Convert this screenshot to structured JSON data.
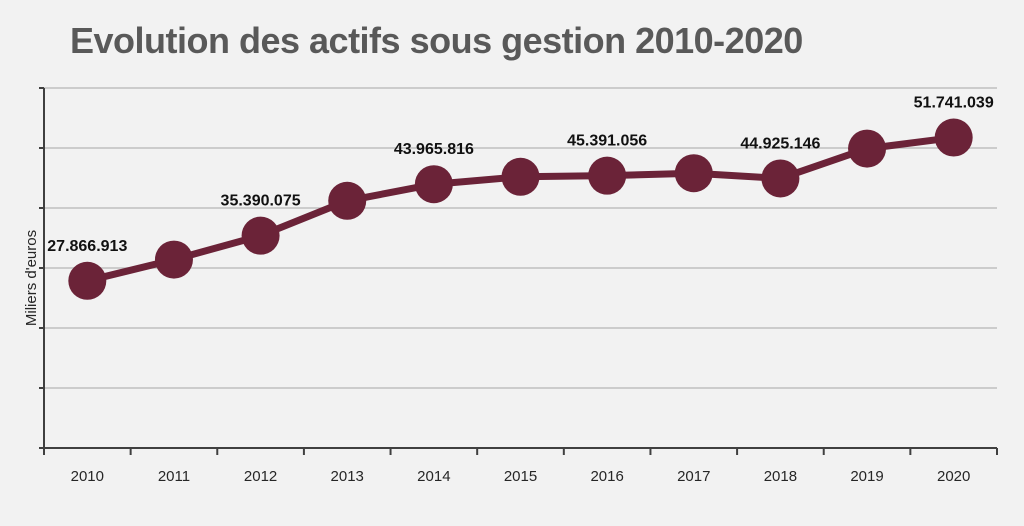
{
  "chart_data": {
    "type": "line",
    "title": "Evolution des actifs sous gestion 2010-2020",
    "xlabel": "",
    "ylabel": "Miliers d'euros",
    "ylim": [
      0,
      60000000
    ],
    "grid": true,
    "legend": "none",
    "categories": [
      "2010",
      "2011",
      "2012",
      "2013",
      "2014",
      "2015",
      "2016",
      "2017",
      "2018",
      "2019",
      "2020"
    ],
    "series": [
      {
        "values": [
          27866913,
          31400000,
          35390075,
          41200000,
          43965816,
          45200000,
          45391056,
          45800000,
          44925146,
          49900000,
          51741039
        ],
        "color": "#6b2338"
      }
    ],
    "data_labels": [
      {
        "index": 0,
        "text": "27.866.913"
      },
      {
        "index": 2,
        "text": "35.390.075"
      },
      {
        "index": 4,
        "text": "43.965.816"
      },
      {
        "index": 6,
        "text": "45.391.056"
      },
      {
        "index": 8,
        "text": "44.925.146"
      },
      {
        "index": 10,
        "text": "51.741.039"
      }
    ]
  }
}
